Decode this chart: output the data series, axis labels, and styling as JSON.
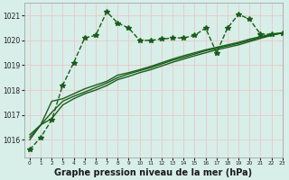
{
  "background_color": "#d8eee8",
  "grid_color_major": "#c8b8c8",
  "grid_color": "#e8c8c8",
  "line_color": "#1a5c1a",
  "title": "Graphe pression niveau de la mer (hPa)",
  "xlim": [
    -0.5,
    23
  ],
  "ylim": [
    1015.3,
    1021.5
  ],
  "yticks": [
    1016,
    1017,
    1018,
    1019,
    1020,
    1021
  ],
  "xticks": [
    0,
    1,
    2,
    3,
    4,
    5,
    6,
    7,
    8,
    9,
    10,
    11,
    12,
    13,
    14,
    15,
    16,
    17,
    18,
    19,
    20,
    21,
    22,
    23
  ],
  "series": [
    {
      "x": [
        0,
        1,
        2,
        3,
        4,
        5,
        6,
        7,
        8,
        9,
        10,
        11,
        12,
        13,
        14,
        15,
        16,
        17,
        18,
        19,
        20,
        21,
        22,
        23
      ],
      "y": [
        1015.6,
        1016.1,
        1016.8,
        1018.2,
        1019.1,
        1020.1,
        1020.2,
        1021.15,
        1020.7,
        1020.5,
        1020.0,
        1020.0,
        1020.05,
        1020.1,
        1020.1,
        1020.2,
        1020.5,
        1019.5,
        1020.5,
        1021.05,
        1020.85,
        1020.25,
        1020.25,
        1020.3
      ],
      "marker": "*",
      "linestyle": "--",
      "linewidth": 1.0,
      "markersize": 4
    },
    {
      "x": [
        0,
        1,
        2,
        3,
        4,
        5,
        6,
        7,
        8,
        9,
        10,
        11,
        12,
        13,
        14,
        15,
        16,
        17,
        18,
        19,
        20,
        21,
        22,
        23
      ],
      "y": [
        1016.0,
        1016.6,
        1017.55,
        1017.65,
        1017.85,
        1018.05,
        1018.2,
        1018.35,
        1018.6,
        1018.7,
        1018.82,
        1018.95,
        1019.1,
        1019.25,
        1019.38,
        1019.5,
        1019.62,
        1019.72,
        1019.82,
        1019.92,
        1020.05,
        1020.15,
        1020.25,
        1020.3
      ],
      "marker": null,
      "linestyle": "-",
      "linewidth": 1.0,
      "markersize": 0
    },
    {
      "x": [
        0,
        1,
        2,
        3,
        4,
        5,
        6,
        7,
        8,
        9,
        10,
        11,
        12,
        13,
        14,
        15,
        16,
        17,
        18,
        19,
        20,
        21,
        22,
        23
      ],
      "y": [
        1016.1,
        1016.6,
        1017.1,
        1017.55,
        1017.75,
        1017.92,
        1018.1,
        1018.28,
        1018.5,
        1018.65,
        1018.78,
        1018.9,
        1019.05,
        1019.2,
        1019.32,
        1019.45,
        1019.58,
        1019.68,
        1019.78,
        1019.88,
        1020.0,
        1020.12,
        1020.22,
        1020.3
      ],
      "marker": null,
      "linestyle": "-",
      "linewidth": 1.0,
      "markersize": 0
    },
    {
      "x": [
        0,
        1,
        2,
        3,
        4,
        5,
        6,
        7,
        8,
        9,
        10,
        11,
        12,
        13,
        14,
        15,
        16,
        17,
        18,
        19,
        20,
        21,
        22,
        23
      ],
      "y": [
        1016.2,
        1016.6,
        1016.85,
        1017.4,
        1017.65,
        1017.85,
        1018.0,
        1018.18,
        1018.42,
        1018.55,
        1018.7,
        1018.82,
        1018.97,
        1019.12,
        1019.25,
        1019.38,
        1019.5,
        1019.62,
        1019.72,
        1019.82,
        1019.95,
        1020.08,
        1020.2,
        1020.3
      ],
      "marker": null,
      "linestyle": "-",
      "linewidth": 1.0,
      "markersize": 0
    }
  ],
  "title_fontsize": 7,
  "tick_fontsize": 5.0,
  "figsize": [
    3.2,
    2.0
  ],
  "dpi": 100
}
